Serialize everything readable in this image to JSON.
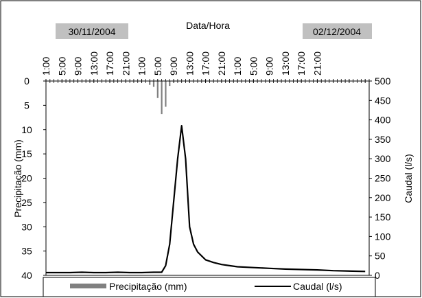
{
  "chart_data": {
    "type": "bar+line",
    "title": "Data/Hora",
    "date_labels": [
      "30/11/2004",
      "02/12/2004"
    ],
    "x_tick_labels": [
      "1:00",
      "5:00",
      "9:00",
      "13:00",
      "17:00",
      "21:00",
      "1:00",
      "5:00",
      "9:00",
      "13:00",
      "17:00",
      "21:00",
      "1:00",
      "5:00",
      "9:00",
      "13:00",
      "17:00",
      "21:00"
    ],
    "y_left": {
      "label": "Precipitação (mm)",
      "lim": [
        0,
        40
      ],
      "ticks": [
        0,
        5,
        10,
        15,
        20,
        25,
        30,
        35,
        40
      ],
      "inverted": true
    },
    "y_right": {
      "label": "Caudal (l/s)",
      "lim": [
        0,
        500
      ],
      "ticks": [
        0,
        50,
        100,
        150,
        200,
        250,
        300,
        350,
        400,
        450,
        500
      ]
    },
    "legend": {
      "placement": "bottom",
      "entries": [
        "Precipitação (mm)",
        "Caudal (l/s)"
      ]
    },
    "grid": false,
    "series": [
      {
        "name": "Precipitação (mm)",
        "kind": "bar",
        "color": "#808080",
        "x_hours": [
          26,
          27,
          28,
          29,
          30,
          31,
          32
        ],
        "values": [
          0.8,
          1.2,
          3.5,
          6.8,
          5.3,
          1.0,
          0.3
        ]
      },
      {
        "name": "Caudal (l/s)",
        "kind": "line",
        "color": "#000000",
        "x_hours": [
          0,
          6,
          9,
          12,
          15,
          18,
          21,
          24,
          27,
          28,
          29,
          30,
          31,
          32,
          33,
          34,
          35,
          36,
          37,
          38,
          39,
          40,
          42,
          44,
          46,
          48,
          52,
          56,
          60,
          64,
          68,
          72,
          80
        ],
        "values": [
          7,
          7,
          8,
          7,
          7,
          8,
          7,
          7,
          8,
          8,
          8,
          25,
          80,
          190,
          300,
          385,
          300,
          125,
          80,
          60,
          50,
          40,
          33,
          28,
          25,
          22,
          20,
          18,
          16,
          15,
          14,
          12,
          10
        ]
      }
    ]
  }
}
